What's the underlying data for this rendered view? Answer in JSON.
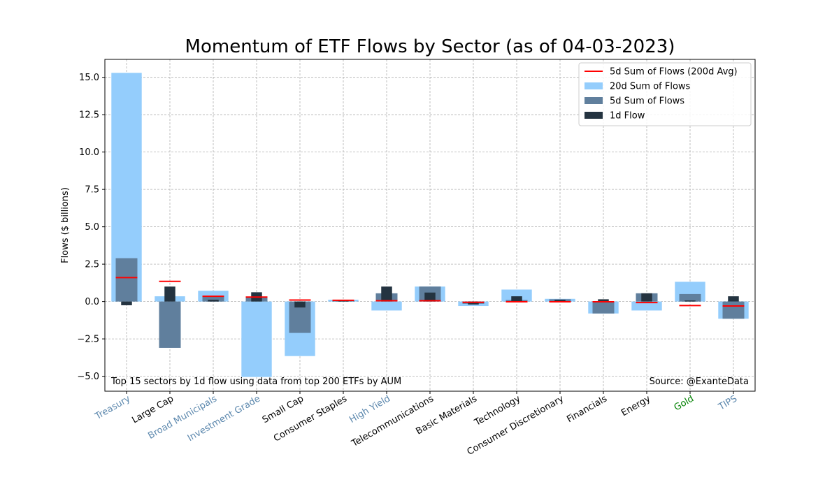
{
  "chart_data": {
    "type": "bar",
    "title": "Momentum of ETF Flows by Sector (as of 04-03-2023)",
    "ylabel": "Flows ($ billions)",
    "xlabel": "",
    "ylim": [
      -6.0,
      16.2
    ],
    "yticks": [
      -5.0,
      -2.5,
      0.0,
      2.5,
      5.0,
      7.5,
      10.0,
      12.5,
      15.0
    ],
    "ytick_labels": [
      "−5.0",
      "−2.5",
      "0.0",
      "2.5",
      "5.0",
      "7.5",
      "10.0",
      "12.5",
      "15.0"
    ],
    "grid": true,
    "legend_position": "top-right",
    "categories": [
      "Treasury",
      "Large Cap",
      "Broad Municipals",
      "Investment Grade",
      "Small Cap",
      "Consumer Staples",
      "High Yield",
      "Telecommunications",
      "Basic Materials",
      "Technology",
      "Consumer Discretionary",
      "Financials",
      "Energy",
      "Gold",
      "TIPS"
    ],
    "category_colors": [
      "#5b87ad",
      "#000000",
      "#5b87ad",
      "#5b87ad",
      "#000000",
      "#000000",
      "#5b87ad",
      "#000000",
      "#000000",
      "#000000",
      "#000000",
      "#000000",
      "#000000",
      "#008000",
      "#5b87ad"
    ],
    "series": [
      {
        "name": "20d Sum of Flows",
        "color": "#94cdfc",
        "values": [
          15.3,
          0.35,
          0.72,
          -5.05,
          -3.65,
          0.12,
          -0.6,
          1.0,
          -0.3,
          0.8,
          0.18,
          -0.8,
          -0.6,
          1.32,
          -1.15
        ]
      },
      {
        "name": "5d Sum of Flows",
        "color": "#607f9d",
        "values": [
          2.9,
          -3.1,
          0.35,
          0.3,
          -2.1,
          0.08,
          0.55,
          1.0,
          -0.15,
          0.1,
          0.15,
          -0.8,
          0.55,
          0.5,
          -1.15
        ]
      },
      {
        "name": "1d Flow",
        "color": "#243340",
        "values": [
          -0.25,
          1.0,
          0.12,
          0.62,
          -0.4,
          0.05,
          1.0,
          0.6,
          -0.2,
          0.35,
          0.12,
          0.15,
          0.55,
          0.07,
          0.35
        ]
      },
      {
        "name": "5d Sum of Flows (200d Avg)",
        "color": "#ff0000",
        "values": [
          1.6,
          1.35,
          0.35,
          0.3,
          0.1,
          0.08,
          0.05,
          0.05,
          -0.05,
          -0.02,
          -0.02,
          -0.02,
          -0.07,
          -0.27,
          -0.3
        ]
      }
    ],
    "legend_order": [
      "5d Sum of Flows (200d Avg)",
      "20d Sum of Flows",
      "5d Sum of Flows",
      "1d Flow"
    ],
    "annotations": {
      "left": "Top 15 sectors by 1d flow using data from top 200 ETFs by AUM",
      "right": "Source: @ExanteData"
    }
  }
}
